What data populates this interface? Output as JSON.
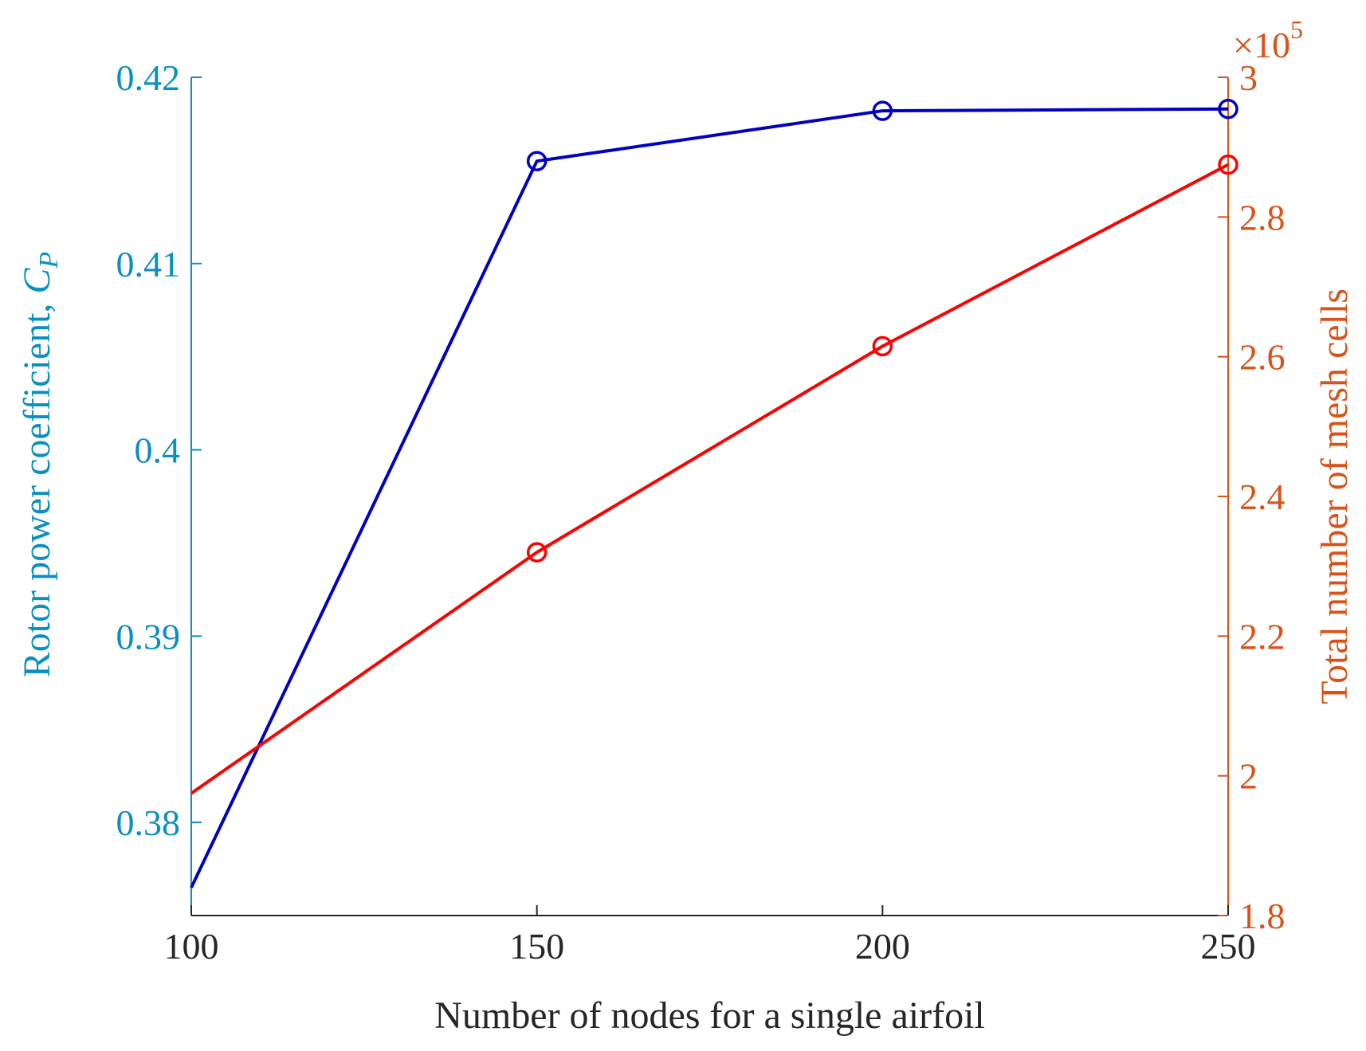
{
  "chart_data": {
    "type": "line",
    "x": [
      100,
      150,
      200,
      250
    ],
    "xlabel": "Number of nodes for a single airfoil",
    "xlim": [
      100,
      250
    ],
    "xticks": [
      "100",
      "150",
      "200",
      "250"
    ],
    "ylabel_left": "Rotor power coefficient,",
    "ylabel_left_symbol": "C",
    "ylabel_left_subscript": "P",
    "ylim_left": [
      0.375,
      0.42
    ],
    "yticks_left": [
      "0.38",
      "0.39",
      "0.4",
      "0.41",
      "0.42"
    ],
    "ylabel_right": "Total number of mesh cells",
    "ylim_right": [
      1.8,
      3.0
    ],
    "yticks_right": [
      "1.8",
      "2",
      "2.2",
      "2.4",
      "2.6",
      "2.8",
      "3"
    ],
    "right_axis_multiplier": "×10",
    "right_axis_exponent": "5",
    "grid": false,
    "series": [
      {
        "axis": "left",
        "color": "#0000c0",
        "marker": "circle",
        "values": [
          0.3765,
          0.4155,
          0.4182,
          0.4183
        ]
      },
      {
        "axis": "right",
        "color": "#ff0000",
        "marker": "circle",
        "values": [
          1.975,
          2.32,
          2.615,
          2.875
        ]
      }
    ],
    "colors": {
      "left_axis": "#0a8fc0",
      "right_axis": "#d95319",
      "bottom_axis": "#262626"
    }
  }
}
